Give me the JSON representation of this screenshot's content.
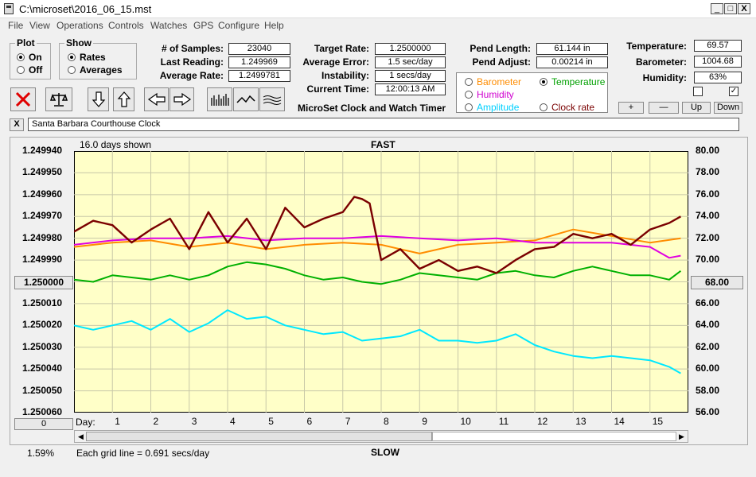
{
  "window": {
    "title": "C:\\microset\\2016_06_15.mst",
    "minimize": "_",
    "maximize": "□",
    "close": "X"
  },
  "menu": [
    "File",
    "View",
    "Operations",
    "Controls",
    "Watches",
    "GPS",
    "Configure",
    "Help"
  ],
  "plot": {
    "title": "Plot",
    "on": "On",
    "off": "Off"
  },
  "show": {
    "title": "Show",
    "rates": "Rates",
    "averages": "Averages"
  },
  "stats": {
    "samples_label": "# of Samples:",
    "samples": "23040",
    "last_label": "Last Reading:",
    "last": "1.249969",
    "avg_label": "Average Rate:",
    "avg": "1.2499781"
  },
  "rates": {
    "target_label": "Target Rate:",
    "target": "1.2500000",
    "error_label": "Average Error:",
    "error": "1.5 sec/day",
    "instab_label": "Instability:",
    "instab": "1 secs/day",
    "time_label": "Current Time:",
    "time": "12:00:13 AM"
  },
  "app_name": "MicroSet Clock and Watch Timer",
  "pend": {
    "length_label": "Pend Length:",
    "length": "61.144 in",
    "adjust_label": "Pend Adjust:",
    "adjust": "0.00214 in"
  },
  "series_select": {
    "barometer": "Barometer",
    "temperature": "Temperature",
    "humidity": "Humidity",
    "amplitude": "Amplitude",
    "clock_rate": "Clock rate"
  },
  "env": {
    "temp_label": "Temperature:",
    "temp": "69.57",
    "baro_label": "Barometer:",
    "baro": "1004.68",
    "hum_label": "Humidity:",
    "hum": "63%"
  },
  "adjust_buttons": {
    "plus": "+",
    "minus": "—",
    "up": "Up",
    "down": "Down"
  },
  "comment": {
    "close": "X",
    "value": "Santa Barbara Courthouse Clock"
  },
  "chart_labels": {
    "days_shown": "16.0 days shown",
    "fast": "FAST",
    "slow": "SLOW",
    "day": "Day:",
    "left_center": "1.250000",
    "right_center": "68.00",
    "scroll_btn": "0",
    "percent": "1.59%",
    "grid_note": "Each grid line = 0.691 secs/day"
  },
  "colors": {
    "plot_bg": "#ffffc8",
    "clock_rate": "#7a0000",
    "barometer": "#ff8c00",
    "humidity": "#e000e0",
    "temperature": "#00b000",
    "amplitude": "#00e8ff"
  },
  "chart_data": {
    "type": "line",
    "x_label": "Day:",
    "x_range": [
      0,
      16
    ],
    "x_ticks": [
      "1",
      "2",
      "3",
      "4",
      "5",
      "6",
      "7",
      "8",
      "9",
      "10",
      "11",
      "12",
      "13",
      "14",
      "15"
    ],
    "left_axis": {
      "range": [
        1.24994,
        1.25006
      ],
      "reversed": true,
      "ticks": [
        "1.249940",
        "1.249950",
        "1.249960",
        "1.249970",
        "1.249980",
        "1.249990",
        "1.250000",
        "1.250010",
        "1.250020",
        "1.250030",
        "1.250040",
        "1.250050",
        "1.250060"
      ]
    },
    "right_axis": {
      "range": [
        56,
        80
      ],
      "ticks": [
        "80.00",
        "78.00",
        "76.00",
        "74.00",
        "72.00",
        "70.00",
        "68.00",
        "66.00",
        "64.00",
        "62.00",
        "60.00",
        "58.00",
        "56.00"
      ]
    },
    "series": [
      {
        "id": "clock_rate",
        "axis": "left",
        "x": [
          0,
          0.5,
          1,
          1.5,
          2,
          2.5,
          3,
          3.5,
          4,
          4.5,
          5,
          5.5,
          6,
          6.5,
          7,
          7.3,
          7.5,
          7.7,
          8,
          8.5,
          9,
          9.5,
          10,
          10.5,
          11,
          11.5,
          12,
          12.5,
          13,
          13.5,
          14,
          14.5,
          15,
          15.5,
          15.8
        ],
        "y": [
          1.249977,
          1.249972,
          1.249974,
          1.249982,
          1.249976,
          1.249971,
          1.249985,
          1.249968,
          1.249982,
          1.249971,
          1.249985,
          1.249966,
          1.249975,
          1.249971,
          1.249968,
          1.249961,
          1.249962,
          1.249964,
          1.24999,
          1.249985,
          1.249994,
          1.24999,
          1.249995,
          1.249993,
          1.249996,
          1.24999,
          1.249985,
          1.249984,
          1.249978,
          1.24998,
          1.249978,
          1.249983,
          1.249976,
          1.249973,
          1.24997
        ]
      },
      {
        "id": "barometer",
        "axis": "right",
        "x": [
          0,
          1,
          2,
          3,
          4,
          5,
          6,
          7,
          8,
          9,
          10,
          11,
          12,
          13,
          14,
          15,
          15.8
        ],
        "y": [
          71.2,
          71.6,
          71.8,
          71.2,
          71.6,
          71.0,
          71.4,
          71.6,
          71.4,
          70.6,
          71.4,
          71.6,
          71.8,
          72.8,
          72.2,
          71.6,
          72.0
        ]
      },
      {
        "id": "humidity",
        "axis": "right",
        "x": [
          0,
          1,
          2,
          3,
          4,
          5,
          6,
          7,
          8,
          9,
          10,
          11,
          12,
          13,
          14,
          15,
          15.5,
          15.8
        ],
        "y": [
          71.4,
          71.8,
          72.0,
          72.0,
          72.2,
          71.8,
          72.0,
          72.0,
          72.2,
          72.0,
          71.8,
          72.0,
          71.6,
          71.6,
          71.6,
          71.2,
          70.2,
          70.4
        ]
      },
      {
        "id": "temperature",
        "axis": "right",
        "x": [
          0,
          0.5,
          1,
          1.5,
          2,
          2.5,
          3,
          3.5,
          4,
          4.5,
          5,
          5.5,
          6,
          6.5,
          7,
          7.5,
          8,
          8.5,
          9,
          9.5,
          10,
          10.5,
          11,
          11.5,
          12,
          12.5,
          13,
          13.5,
          14,
          14.5,
          15,
          15.5,
          15.8
        ],
        "y": [
          68.2,
          68.0,
          68.6,
          68.4,
          68.2,
          68.6,
          68.2,
          68.6,
          69.4,
          69.8,
          69.6,
          69.2,
          68.6,
          68.2,
          68.4,
          68.0,
          67.8,
          68.2,
          68.8,
          68.6,
          68.4,
          68.2,
          68.8,
          69.0,
          68.6,
          68.4,
          69.0,
          69.4,
          69.0,
          68.6,
          68.6,
          68.2,
          69.0
        ]
      },
      {
        "id": "amplitude",
        "axis": "right",
        "x": [
          0,
          0.5,
          1,
          1.5,
          2,
          2.5,
          3,
          3.5,
          4,
          4.5,
          5,
          5.5,
          6,
          6.5,
          7,
          7.5,
          8,
          8.5,
          9,
          9.5,
          10,
          10.5,
          11,
          11.5,
          12,
          12.5,
          13,
          13.5,
          14,
          14.5,
          15,
          15.5,
          15.8
        ],
        "y": [
          64.0,
          63.6,
          64.0,
          64.4,
          63.6,
          64.6,
          63.4,
          64.2,
          65.4,
          64.6,
          64.8,
          64.0,
          63.6,
          63.2,
          63.4,
          62.6,
          62.8,
          63.0,
          63.6,
          62.6,
          62.6,
          62.4,
          62.6,
          63.2,
          62.2,
          61.6,
          61.2,
          61.0,
          61.2,
          61.0,
          60.8,
          60.2,
          59.6
        ]
      }
    ]
  }
}
